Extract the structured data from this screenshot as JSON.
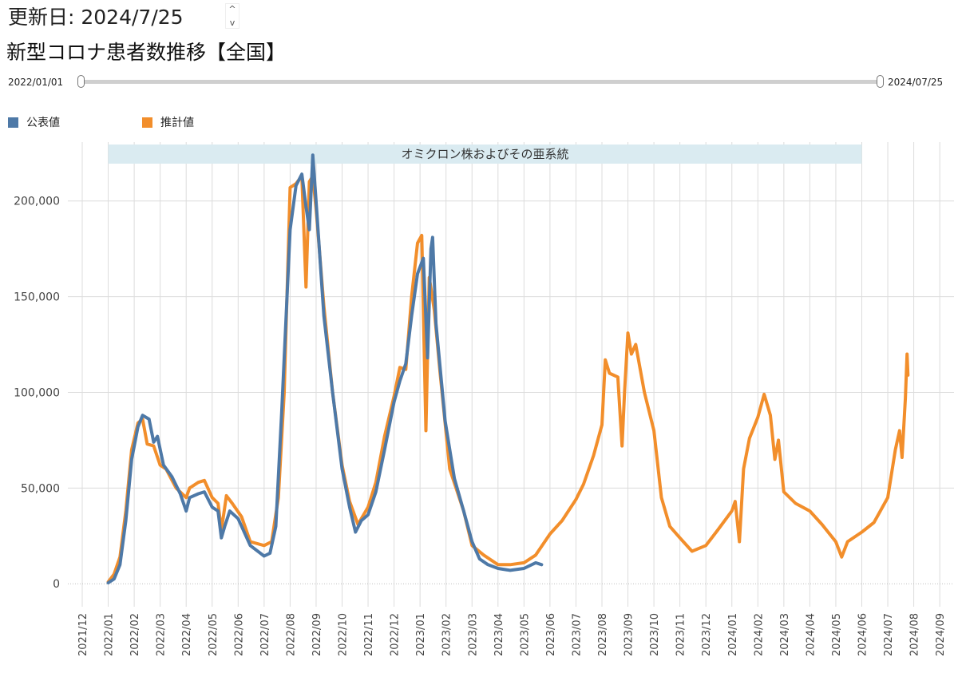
{
  "header": {
    "update_label": "更新日: 2024/7/25",
    "spinner_up": "^",
    "spinner_down": "v"
  },
  "title": "新型コロナ患者数推移【全国】",
  "range": {
    "start": "2022/01/01",
    "end": "2024/07/25"
  },
  "legend": [
    {
      "label": "公表値",
      "color": "#4e79a7"
    },
    {
      "label": "推計値",
      "color": "#f28e2b"
    }
  ],
  "chart_data": {
    "type": "line",
    "annotation": {
      "label": "オミクロン株およびその亜系統",
      "from": "2022-01",
      "to": "2024-06",
      "color": "#daebf1"
    },
    "x_ticks": [
      "2021/12",
      "2022/01",
      "2022/02",
      "2022/03",
      "2022/04",
      "2022/05",
      "2022/06",
      "2022/07",
      "2022/08",
      "2022/09",
      "2022/10",
      "2022/11",
      "2022/12",
      "2023/01",
      "2023/02",
      "2023/03",
      "2023/04",
      "2023/05",
      "2023/06",
      "2023/07",
      "2023/08",
      "2023/09",
      "2023/10",
      "2023/11",
      "2023/12",
      "2024/01",
      "2024/02",
      "2024/03",
      "2024/04",
      "2024/05",
      "2024/06",
      "2024/07",
      "2024/08",
      "2024/09"
    ],
    "y_ticks": [
      0,
      50000,
      100000,
      150000,
      200000
    ],
    "y_tick_labels": [
      "0",
      "50,000",
      "100,000",
      "150,000",
      "200,000"
    ],
    "ylim": [
      -12000,
      237000
    ],
    "grid": true,
    "legend_position": "top-left",
    "series": [
      {
        "name": "公表値",
        "color": "#4e79a7",
        "points": [
          [
            "2022-01-01",
            500
          ],
          [
            "2022-01-08",
            2500
          ],
          [
            "2022-01-15",
            10000
          ],
          [
            "2022-01-22",
            33000
          ],
          [
            "2022-01-29",
            65000
          ],
          [
            "2022-02-05",
            82000
          ],
          [
            "2022-02-10",
            88000
          ],
          [
            "2022-02-17",
            86000
          ],
          [
            "2022-02-22",
            74000
          ],
          [
            "2022-02-26",
            77000
          ],
          [
            "2022-03-05",
            62000
          ],
          [
            "2022-03-15",
            56000
          ],
          [
            "2022-03-25",
            47000
          ],
          [
            "2022-04-01",
            38000
          ],
          [
            "2022-04-05",
            45000
          ],
          [
            "2022-04-15",
            47000
          ],
          [
            "2022-04-22",
            48000
          ],
          [
            "2022-05-01",
            40000
          ],
          [
            "2022-05-08",
            38000
          ],
          [
            "2022-05-12",
            24000
          ],
          [
            "2022-05-16",
            30000
          ],
          [
            "2022-05-22",
            38000
          ],
          [
            "2022-06-01",
            34000
          ],
          [
            "2022-06-15",
            20000
          ],
          [
            "2022-07-01",
            14500
          ],
          [
            "2022-07-08",
            16000
          ],
          [
            "2022-07-15",
            30000
          ],
          [
            "2022-07-22",
            90000
          ],
          [
            "2022-08-01",
            185000
          ],
          [
            "2022-08-08",
            208000
          ],
          [
            "2022-08-15",
            214000
          ],
          [
            "2022-08-20",
            197000
          ],
          [
            "2022-08-24",
            185000
          ],
          [
            "2022-08-28",
            224000
          ],
          [
            "2022-09-01",
            200000
          ],
          [
            "2022-09-10",
            140000
          ],
          [
            "2022-09-20",
            100000
          ],
          [
            "2022-10-01",
            60000
          ],
          [
            "2022-10-10",
            40000
          ],
          [
            "2022-10-17",
            27000
          ],
          [
            "2022-10-24",
            33000
          ],
          [
            "2022-11-01",
            36000
          ],
          [
            "2022-11-10",
            48000
          ],
          [
            "2022-11-20",
            70000
          ],
          [
            "2022-12-01",
            95000
          ],
          [
            "2022-12-08",
            106000
          ],
          [
            "2022-12-15",
            115000
          ],
          [
            "2022-12-22",
            140000
          ],
          [
            "2022-12-29",
            162000
          ],
          [
            "2023-01-05",
            170000
          ],
          [
            "2023-01-10",
            118000
          ],
          [
            "2023-01-14",
            175000
          ],
          [
            "2023-01-16",
            181000
          ],
          [
            "2023-01-20",
            136000
          ],
          [
            "2023-01-31",
            85000
          ],
          [
            "2023-02-10",
            55000
          ],
          [
            "2023-02-20",
            38000
          ],
          [
            "2023-03-01",
            22000
          ],
          [
            "2023-03-10",
            13000
          ],
          [
            "2023-03-20",
            10000
          ],
          [
            "2023-04-01",
            8000
          ],
          [
            "2023-04-15",
            7000
          ],
          [
            "2023-05-01",
            8000
          ],
          [
            "2023-05-15",
            11000
          ],
          [
            "2023-05-22",
            10000
          ]
        ]
      },
      {
        "name": "推計値",
        "color": "#f28e2b",
        "points": [
          [
            "2022-01-01",
            1000
          ],
          [
            "2022-01-08",
            5000
          ],
          [
            "2022-01-15",
            14000
          ],
          [
            "2022-01-22",
            38000
          ],
          [
            "2022-01-29",
            70000
          ],
          [
            "2022-02-05",
            84000
          ],
          [
            "2022-02-10",
            86000
          ],
          [
            "2022-02-15",
            73000
          ],
          [
            "2022-02-22",
            72000
          ],
          [
            "2022-03-01",
            62000
          ],
          [
            "2022-03-08",
            60000
          ],
          [
            "2022-03-20",
            50000
          ],
          [
            "2022-04-01",
            45000
          ],
          [
            "2022-04-05",
            50000
          ],
          [
            "2022-04-15",
            53000
          ],
          [
            "2022-04-22",
            54000
          ],
          [
            "2022-05-01",
            45000
          ],
          [
            "2022-05-08",
            42000
          ],
          [
            "2022-05-12",
            28000
          ],
          [
            "2022-05-18",
            46000
          ],
          [
            "2022-05-25",
            42000
          ],
          [
            "2022-06-05",
            35000
          ],
          [
            "2022-06-15",
            22000
          ],
          [
            "2022-07-01",
            20000
          ],
          [
            "2022-07-10",
            22000
          ],
          [
            "2022-07-18",
            45000
          ],
          [
            "2022-07-25",
            100000
          ],
          [
            "2022-08-01",
            207000
          ],
          [
            "2022-08-08",
            209000
          ],
          [
            "2022-08-15",
            213000
          ],
          [
            "2022-08-20",
            155000
          ],
          [
            "2022-08-24",
            210000
          ],
          [
            "2022-08-28",
            213000
          ],
          [
            "2022-09-01",
            196000
          ],
          [
            "2022-09-10",
            145000
          ],
          [
            "2022-09-20",
            100000
          ],
          [
            "2022-10-01",
            62000
          ],
          [
            "2022-10-10",
            43000
          ],
          [
            "2022-10-20",
            31000
          ],
          [
            "2022-11-01",
            40000
          ],
          [
            "2022-11-10",
            53000
          ],
          [
            "2022-11-20",
            77000
          ],
          [
            "2022-12-01",
            98000
          ],
          [
            "2022-12-08",
            113000
          ],
          [
            "2022-12-15",
            112000
          ],
          [
            "2022-12-22",
            150000
          ],
          [
            "2022-12-29",
            178000
          ],
          [
            "2023-01-03",
            182000
          ],
          [
            "2023-01-08",
            80000
          ],
          [
            "2023-01-12",
            160000
          ],
          [
            "2023-01-18",
            143000
          ],
          [
            "2023-01-25",
            110000
          ],
          [
            "2023-02-05",
            60000
          ],
          [
            "2023-02-20",
            38000
          ],
          [
            "2023-03-01",
            20000
          ],
          [
            "2023-03-15",
            15000
          ],
          [
            "2023-04-01",
            10000
          ],
          [
            "2023-04-15",
            10000
          ],
          [
            "2023-05-01",
            11000
          ],
          [
            "2023-05-15",
            15000
          ],
          [
            "2023-06-01",
            26000
          ],
          [
            "2023-06-15",
            33000
          ],
          [
            "2023-07-01",
            44000
          ],
          [
            "2023-07-10",
            52000
          ],
          [
            "2023-07-22",
            67000
          ],
          [
            "2023-08-01",
            83000
          ],
          [
            "2023-08-05",
            117000
          ],
          [
            "2023-08-10",
            110000
          ],
          [
            "2023-08-20",
            108000
          ],
          [
            "2023-08-25",
            72000
          ],
          [
            "2023-08-28",
            100000
          ],
          [
            "2023-09-01",
            131000
          ],
          [
            "2023-09-05",
            120000
          ],
          [
            "2023-09-10",
            125000
          ],
          [
            "2023-09-20",
            100000
          ],
          [
            "2023-10-01",
            80000
          ],
          [
            "2023-10-10",
            45000
          ],
          [
            "2023-10-20",
            30000
          ],
          [
            "2023-11-01",
            24000
          ],
          [
            "2023-11-15",
            17000
          ],
          [
            "2023-12-01",
            20000
          ],
          [
            "2023-12-15",
            28000
          ],
          [
            "2024-01-01",
            38000
          ],
          [
            "2024-01-05",
            43000
          ],
          [
            "2024-01-10",
            22000
          ],
          [
            "2024-01-15",
            60000
          ],
          [
            "2024-01-22",
            76000
          ],
          [
            "2024-02-01",
            87000
          ],
          [
            "2024-02-08",
            99000
          ],
          [
            "2024-02-15",
            88000
          ],
          [
            "2024-02-20",
            65000
          ],
          [
            "2024-02-24",
            75000
          ],
          [
            "2024-03-01",
            48000
          ],
          [
            "2024-03-15",
            42000
          ],
          [
            "2024-04-01",
            38000
          ],
          [
            "2024-04-15",
            31000
          ],
          [
            "2024-05-01",
            22000
          ],
          [
            "2024-05-08",
            14000
          ],
          [
            "2024-05-15",
            22000
          ],
          [
            "2024-06-01",
            27000
          ],
          [
            "2024-06-15",
            32000
          ],
          [
            "2024-07-01",
            45000
          ],
          [
            "2024-07-10",
            70000
          ],
          [
            "2024-07-15",
            80000
          ],
          [
            "2024-07-18",
            66000
          ],
          [
            "2024-07-22",
            97000
          ],
          [
            "2024-07-24",
            120000
          ],
          [
            "2024-07-25",
            109000
          ]
        ]
      }
    ]
  }
}
